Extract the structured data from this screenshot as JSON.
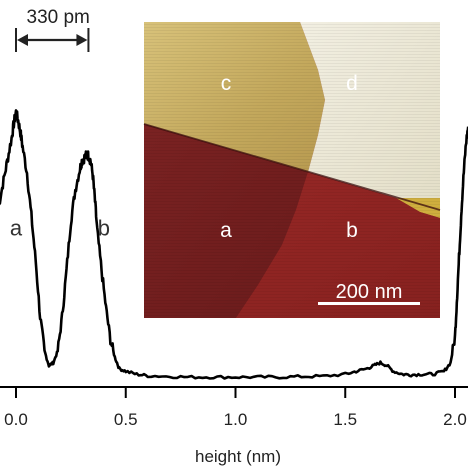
{
  "chart_data": {
    "type": "line",
    "xlabel": "height (nm)",
    "ylabel": "",
    "xlim": [
      -0.08,
      2.06
    ],
    "ylim": [
      0,
      1.0
    ],
    "grid": false,
    "x_ticks": [
      0.0,
      0.5,
      1.0,
      1.5,
      2.0
    ],
    "x_tick_labels": [
      "0.0",
      "0.5",
      "1.0",
      "1.5",
      "2.0"
    ],
    "peak_labels": [
      {
        "text": "a",
        "x": 0.0,
        "y": 0.53
      },
      {
        "text": "b",
        "x": 0.3,
        "y": 0.53
      }
    ],
    "spacing_annotation": {
      "text": "330 pm",
      "x_start": 0.0,
      "x_end": 0.33
    },
    "series": [
      {
        "values_x": [
          -0.08,
          -0.06,
          -0.04,
          -0.02,
          -0.01,
          0.0,
          0.01,
          0.02,
          0.03,
          0.05,
          0.07,
          0.09,
          0.11,
          0.13,
          0.15,
          0.17,
          0.19,
          0.21,
          0.23,
          0.25,
          0.27,
          0.29,
          0.3,
          0.31,
          0.32,
          0.33,
          0.34,
          0.35,
          0.36,
          0.37,
          0.39,
          0.41,
          0.43,
          0.45,
          0.47,
          0.5,
          0.55,
          0.6,
          0.7,
          0.8,
          0.9,
          1.0,
          1.1,
          1.2,
          1.3,
          1.4,
          1.5,
          1.55,
          1.6,
          1.63,
          1.66,
          1.69,
          1.72,
          1.76,
          1.8,
          1.85,
          1.9,
          1.95,
          1.98,
          2.0,
          2.01,
          2.02,
          2.03,
          2.04,
          2.05,
          2.06
        ],
        "values_y": [
          0.6,
          0.68,
          0.76,
          0.84,
          0.89,
          0.93,
          0.9,
          0.86,
          0.81,
          0.72,
          0.57,
          0.41,
          0.22,
          0.1,
          0.05,
          0.06,
          0.1,
          0.22,
          0.38,
          0.55,
          0.66,
          0.73,
          0.76,
          0.77,
          0.78,
          0.78,
          0.76,
          0.71,
          0.62,
          0.52,
          0.38,
          0.25,
          0.14,
          0.08,
          0.04,
          0.03,
          0.02,
          0.015,
          0.012,
          0.01,
          0.01,
          0.01,
          0.01,
          0.01,
          0.012,
          0.013,
          0.02,
          0.03,
          0.04,
          0.05,
          0.06,
          0.05,
          0.03,
          0.02,
          0.018,
          0.02,
          0.02,
          0.03,
          0.06,
          0.15,
          0.3,
          0.45,
          0.6,
          0.72,
          0.82,
          0.88
        ]
      }
    ]
  },
  "inset": {
    "region_labels": [
      "c",
      "d",
      "a",
      "b"
    ],
    "scale_bar_label": "200 nm",
    "colors": {
      "region_c": "#c6ad62",
      "region_d": "#ebe7d4",
      "region_a": "#731e1e",
      "region_b": "#8e2421",
      "scale_bar": "#ffffff"
    }
  },
  "colors": {
    "line": "#000000",
    "axis": "#000000",
    "text": "#222222"
  }
}
